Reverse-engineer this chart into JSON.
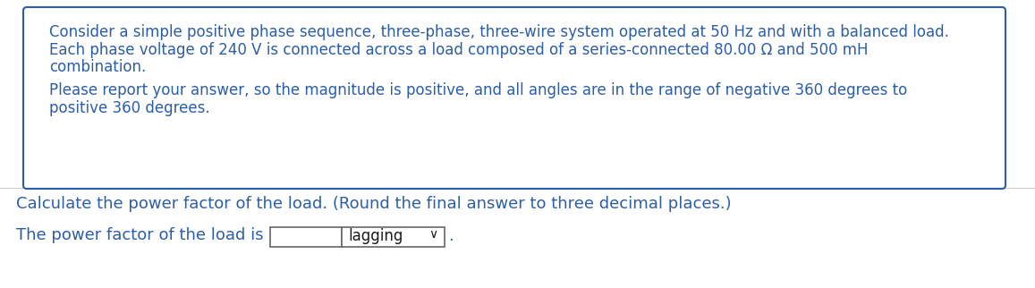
{
  "box_text_line1": "Consider a simple positive phase sequence, three-phase, three-wire system operated at 50 Hz and with a balanced load.",
  "box_text_line2": "Each phase voltage of 240 V is connected across a load composed of a series-connected 80.00 Ω and 500 mH",
  "box_text_line3": "combination.",
  "box_text_line4": "Please report your answer, so the magnitude is positive, and all angles are in the range of negative 360 degrees to",
  "box_text_line5": "positive 360 degrees.",
  "question_text": "Calculate the power factor of the load. (Round the final answer to three decimal places.)",
  "answer_label": "The power factor of the load is",
  "dropdown_text": "lagging",
  "text_color": "#2B5EA7",
  "box_border_color": "#2B5EA7",
  "background_color": "#ffffff",
  "font_size_box": 12.0,
  "font_size_question": 13.0,
  "font_size_answer": 13.0,
  "fig_width": 11.57,
  "fig_height": 3.22,
  "dpi": 100
}
